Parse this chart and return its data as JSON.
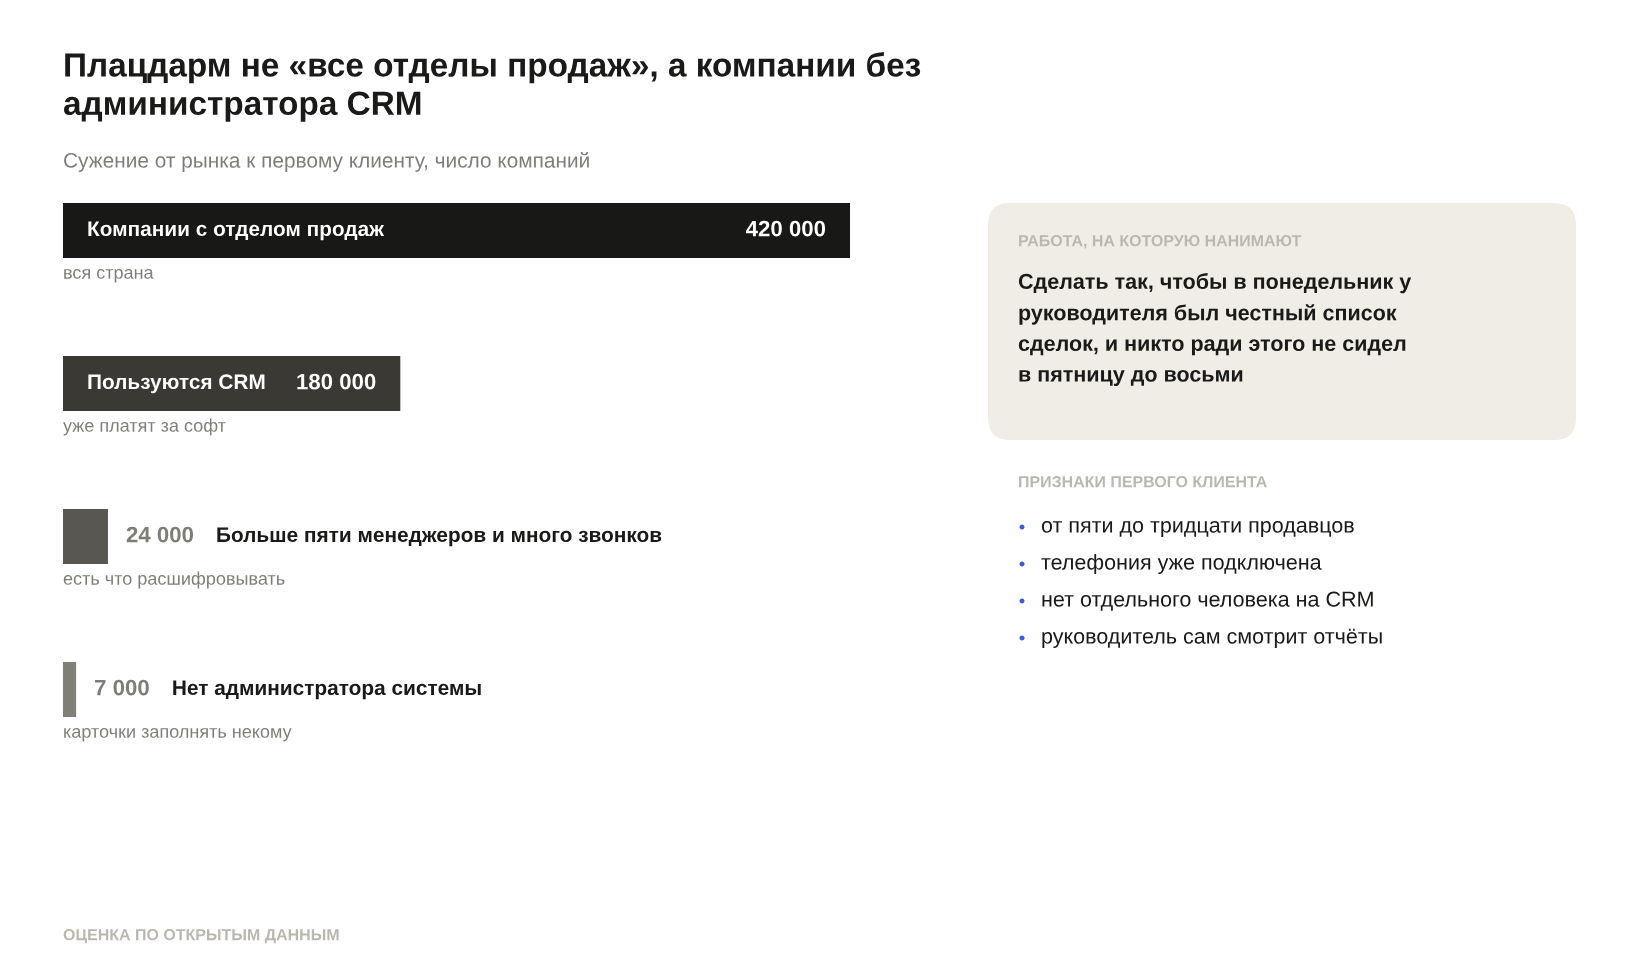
{
  "chart_data": [
    {
      "type": "bar",
      "orientation": "horizontal",
      "title": "Плацдарм не «все отделы продаж», а компании без администратора CRM",
      "subtitle": "Сужение от рынка к первому клиенту, число компаний",
      "categories": [
        "Компании с отделом продаж",
        "Пользуются CRM",
        "Больше пяти менеджеров и много звонков",
        "Нет администратора системы"
      ],
      "values": [
        420000,
        180000,
        24000,
        7000
      ],
      "colors": [
        "#181816",
        "#3a3934",
        "#595751",
        "#7f7e77"
      ],
      "value_labels": [
        "420 000",
        "180 000",
        "24 000",
        "7 000"
      ],
      "tick_labels": false,
      "annotations": [
        "вся страна",
        "уже платят за софт",
        "есть что расшифровывать",
        "карточки заполнять некому",
        "ОЦЕНКА ПО ОТКРЫТЫМ ДАННЫМ"
      ]
    },
    {
      "type": "other",
      "title": "РАБОТА, НА КОТОРУЮ НАНИМАЮТ",
      "annotations": [
        "Сделать так, чтобы в понедельник у руководителя был честный список сделок, и никто ради этого не сидел в пятницу до восьми"
      ]
    },
    {
      "type": "other",
      "title": "ПРИЗНАКИ ПЕРВОГО КЛИЕНТА",
      "annotations": [
        "от пяти до тридцати продавцов",
        "телефония уже подключена",
        "нет отдельного человека на CRM",
        "руководитель сам смотрит отчёты"
      ]
    }
  ]
}
